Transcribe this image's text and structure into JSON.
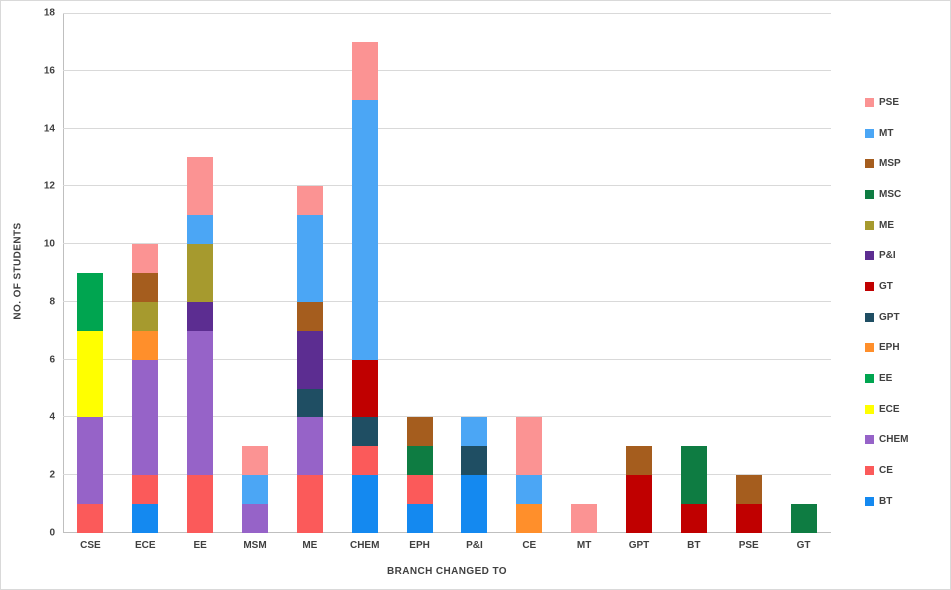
{
  "chart_data": {
    "type": "bar",
    "stacked": true,
    "title": "",
    "xlabel": "BRANCH CHANGED TO",
    "ylabel": "NO. OF STUDENTS",
    "ylim": [
      0,
      18
    ],
    "ytick_step": 2,
    "grid": true,
    "legend_position": "right",
    "categories": [
      "CSE",
      "ECE",
      "EE",
      "MSM",
      "ME",
      "CHEM",
      "EPH",
      "P&I",
      "CE",
      "MT",
      "GPT",
      "BT",
      "PSE",
      "GT"
    ],
    "series": [
      {
        "name": "BT",
        "color": "#1489f0",
        "values": [
          0,
          1,
          0,
          0,
          0,
          2,
          1,
          2,
          0,
          0,
          0,
          0,
          0,
          0
        ]
      },
      {
        "name": "CE",
        "color": "#fb5a5a",
        "values": [
          1,
          1,
          2,
          0,
          2,
          1,
          1,
          0,
          0,
          0,
          0,
          0,
          0,
          0
        ]
      },
      {
        "name": "CHEM",
        "color": "#9663c8",
        "values": [
          3,
          4,
          5,
          1,
          2,
          0,
          0,
          0,
          0,
          0,
          0,
          0,
          0,
          0
        ]
      },
      {
        "name": "ECE",
        "color": "#ffff00",
        "values": [
          3,
          0,
          0,
          0,
          0,
          0,
          0,
          0,
          0,
          0,
          0,
          0,
          0,
          0
        ]
      },
      {
        "name": "EE",
        "color": "#00a550",
        "values": [
          2,
          0,
          0,
          0,
          0,
          0,
          0,
          0,
          0,
          0,
          0,
          0,
          0,
          0
        ]
      },
      {
        "name": "EPH",
        "color": "#ff8f2b",
        "values": [
          0,
          1,
          0,
          0,
          0,
          0,
          0,
          0,
          1,
          0,
          0,
          0,
          0,
          0
        ]
      },
      {
        "name": "GPT",
        "color": "#1f4e63",
        "values": [
          0,
          0,
          0,
          0,
          1,
          1,
          0,
          1,
          0,
          0,
          0,
          0,
          0,
          0
        ]
      },
      {
        "name": "GT",
        "color": "#c00000",
        "values": [
          0,
          0,
          0,
          0,
          0,
          2,
          0,
          0,
          0,
          0,
          2,
          1,
          1,
          0
        ]
      },
      {
        "name": "P&I",
        "color": "#5c2d91",
        "values": [
          0,
          0,
          1,
          0,
          2,
          0,
          0,
          0,
          0,
          0,
          0,
          0,
          0,
          0
        ]
      },
      {
        "name": "ME",
        "color": "#a69a2e",
        "values": [
          0,
          1,
          2,
          0,
          0,
          0,
          0,
          0,
          0,
          0,
          0,
          0,
          0,
          0
        ]
      },
      {
        "name": "MSC",
        "color": "#0e7c42",
        "values": [
          0,
          0,
          0,
          0,
          0,
          0,
          1,
          0,
          0,
          0,
          0,
          2,
          0,
          1
        ]
      },
      {
        "name": "MSP",
        "color": "#a55d1e",
        "values": [
          0,
          1,
          0,
          0,
          1,
          0,
          1,
          0,
          0,
          0,
          1,
          0,
          1,
          0
        ]
      },
      {
        "name": "MT",
        "color": "#4ba6f5",
        "values": [
          0,
          0,
          1,
          1,
          3,
          9,
          0,
          1,
          1,
          0,
          0,
          0,
          0,
          0
        ]
      },
      {
        "name": "PSE",
        "color": "#fb9393",
        "values": [
          0,
          1,
          2,
          1,
          1,
          2,
          0,
          0,
          2,
          1,
          0,
          0,
          0,
          0
        ]
      }
    ],
    "legend_order": [
      "PSE",
      "MT",
      "MSP",
      "MSC",
      "ME",
      "P&I",
      "GT",
      "GPT",
      "EPH",
      "EE",
      "ECE",
      "CHEM",
      "CE",
      "BT"
    ]
  }
}
